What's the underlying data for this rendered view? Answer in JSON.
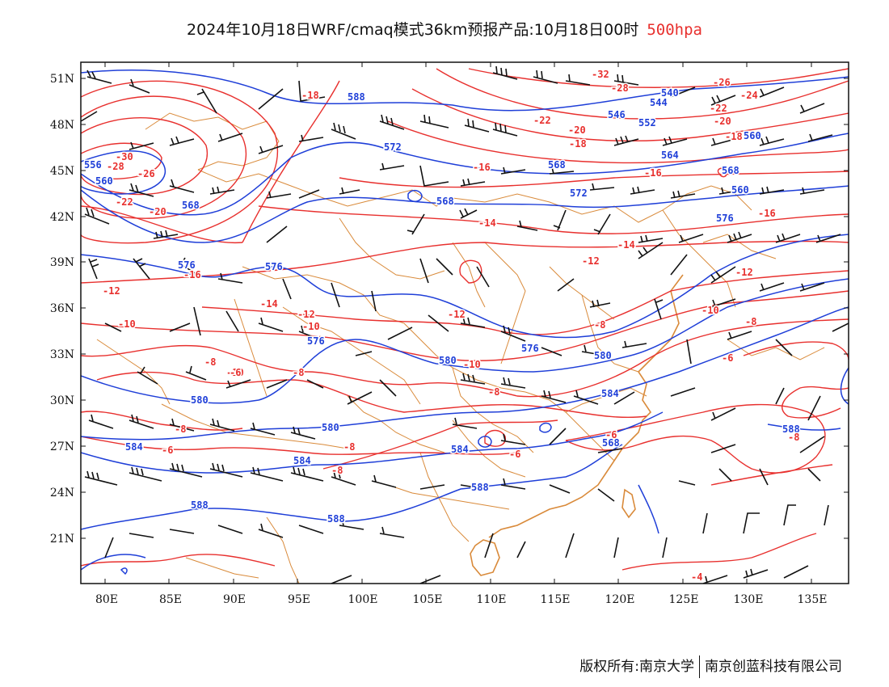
{
  "title": {
    "main": "2024年10月18日WRF/cmaq模式36km预报产品:10月18日00时",
    "level": "500hpa"
  },
  "footer": {
    "copyright": "版权所有:南京大学",
    "company": "南京创蓝科技有限公司"
  },
  "colors": {
    "temperature": "#e8302e",
    "height": "#1f3fd8",
    "border": "#d98a3a",
    "wind": "#111111"
  },
  "axes": {
    "lon_labels": [
      "80E",
      "85E",
      "90E",
      "95E",
      "100E",
      "105E",
      "110E",
      "115E",
      "120E",
      "125E",
      "130E",
      "135E"
    ],
    "lat_labels": [
      "51N",
      "48N",
      "45N",
      "42N",
      "39N",
      "36N",
      "33N",
      "30N",
      "27N",
      "24N",
      "21N"
    ]
  },
  "height_labels": [
    "588",
    "572",
    "568",
    "568",
    "552",
    "546",
    "540",
    "544",
    "564",
    "560",
    "568",
    "572",
    "576",
    "560",
    "556",
    "560",
    "568",
    "576",
    "576",
    "576",
    "576",
    "580",
    "580",
    "584",
    "580",
    "584",
    "580",
    "584",
    "584",
    "588",
    "588",
    "588",
    "588",
    "568"
  ],
  "temp_labels": [
    "-18",
    "-22",
    "-20",
    "-18",
    "-16",
    "-16",
    "-26",
    "-22",
    "-20",
    "-18",
    "-32",
    "-28",
    "-30",
    "-28",
    "-26",
    "-22",
    "-20",
    "-16",
    "-16",
    "-14",
    "-14",
    "-12",
    "-12",
    "-12",
    "-14",
    "-12",
    "-10",
    "-10",
    "-10",
    "-8",
    "-12",
    "-10",
    "-8",
    "-6",
    "-8",
    "-10",
    "-8",
    "-8",
    "-8",
    "-6",
    "-8",
    "-8",
    "-6",
    "-6",
    "-8",
    "-6",
    "-4",
    "-24"
  ]
}
